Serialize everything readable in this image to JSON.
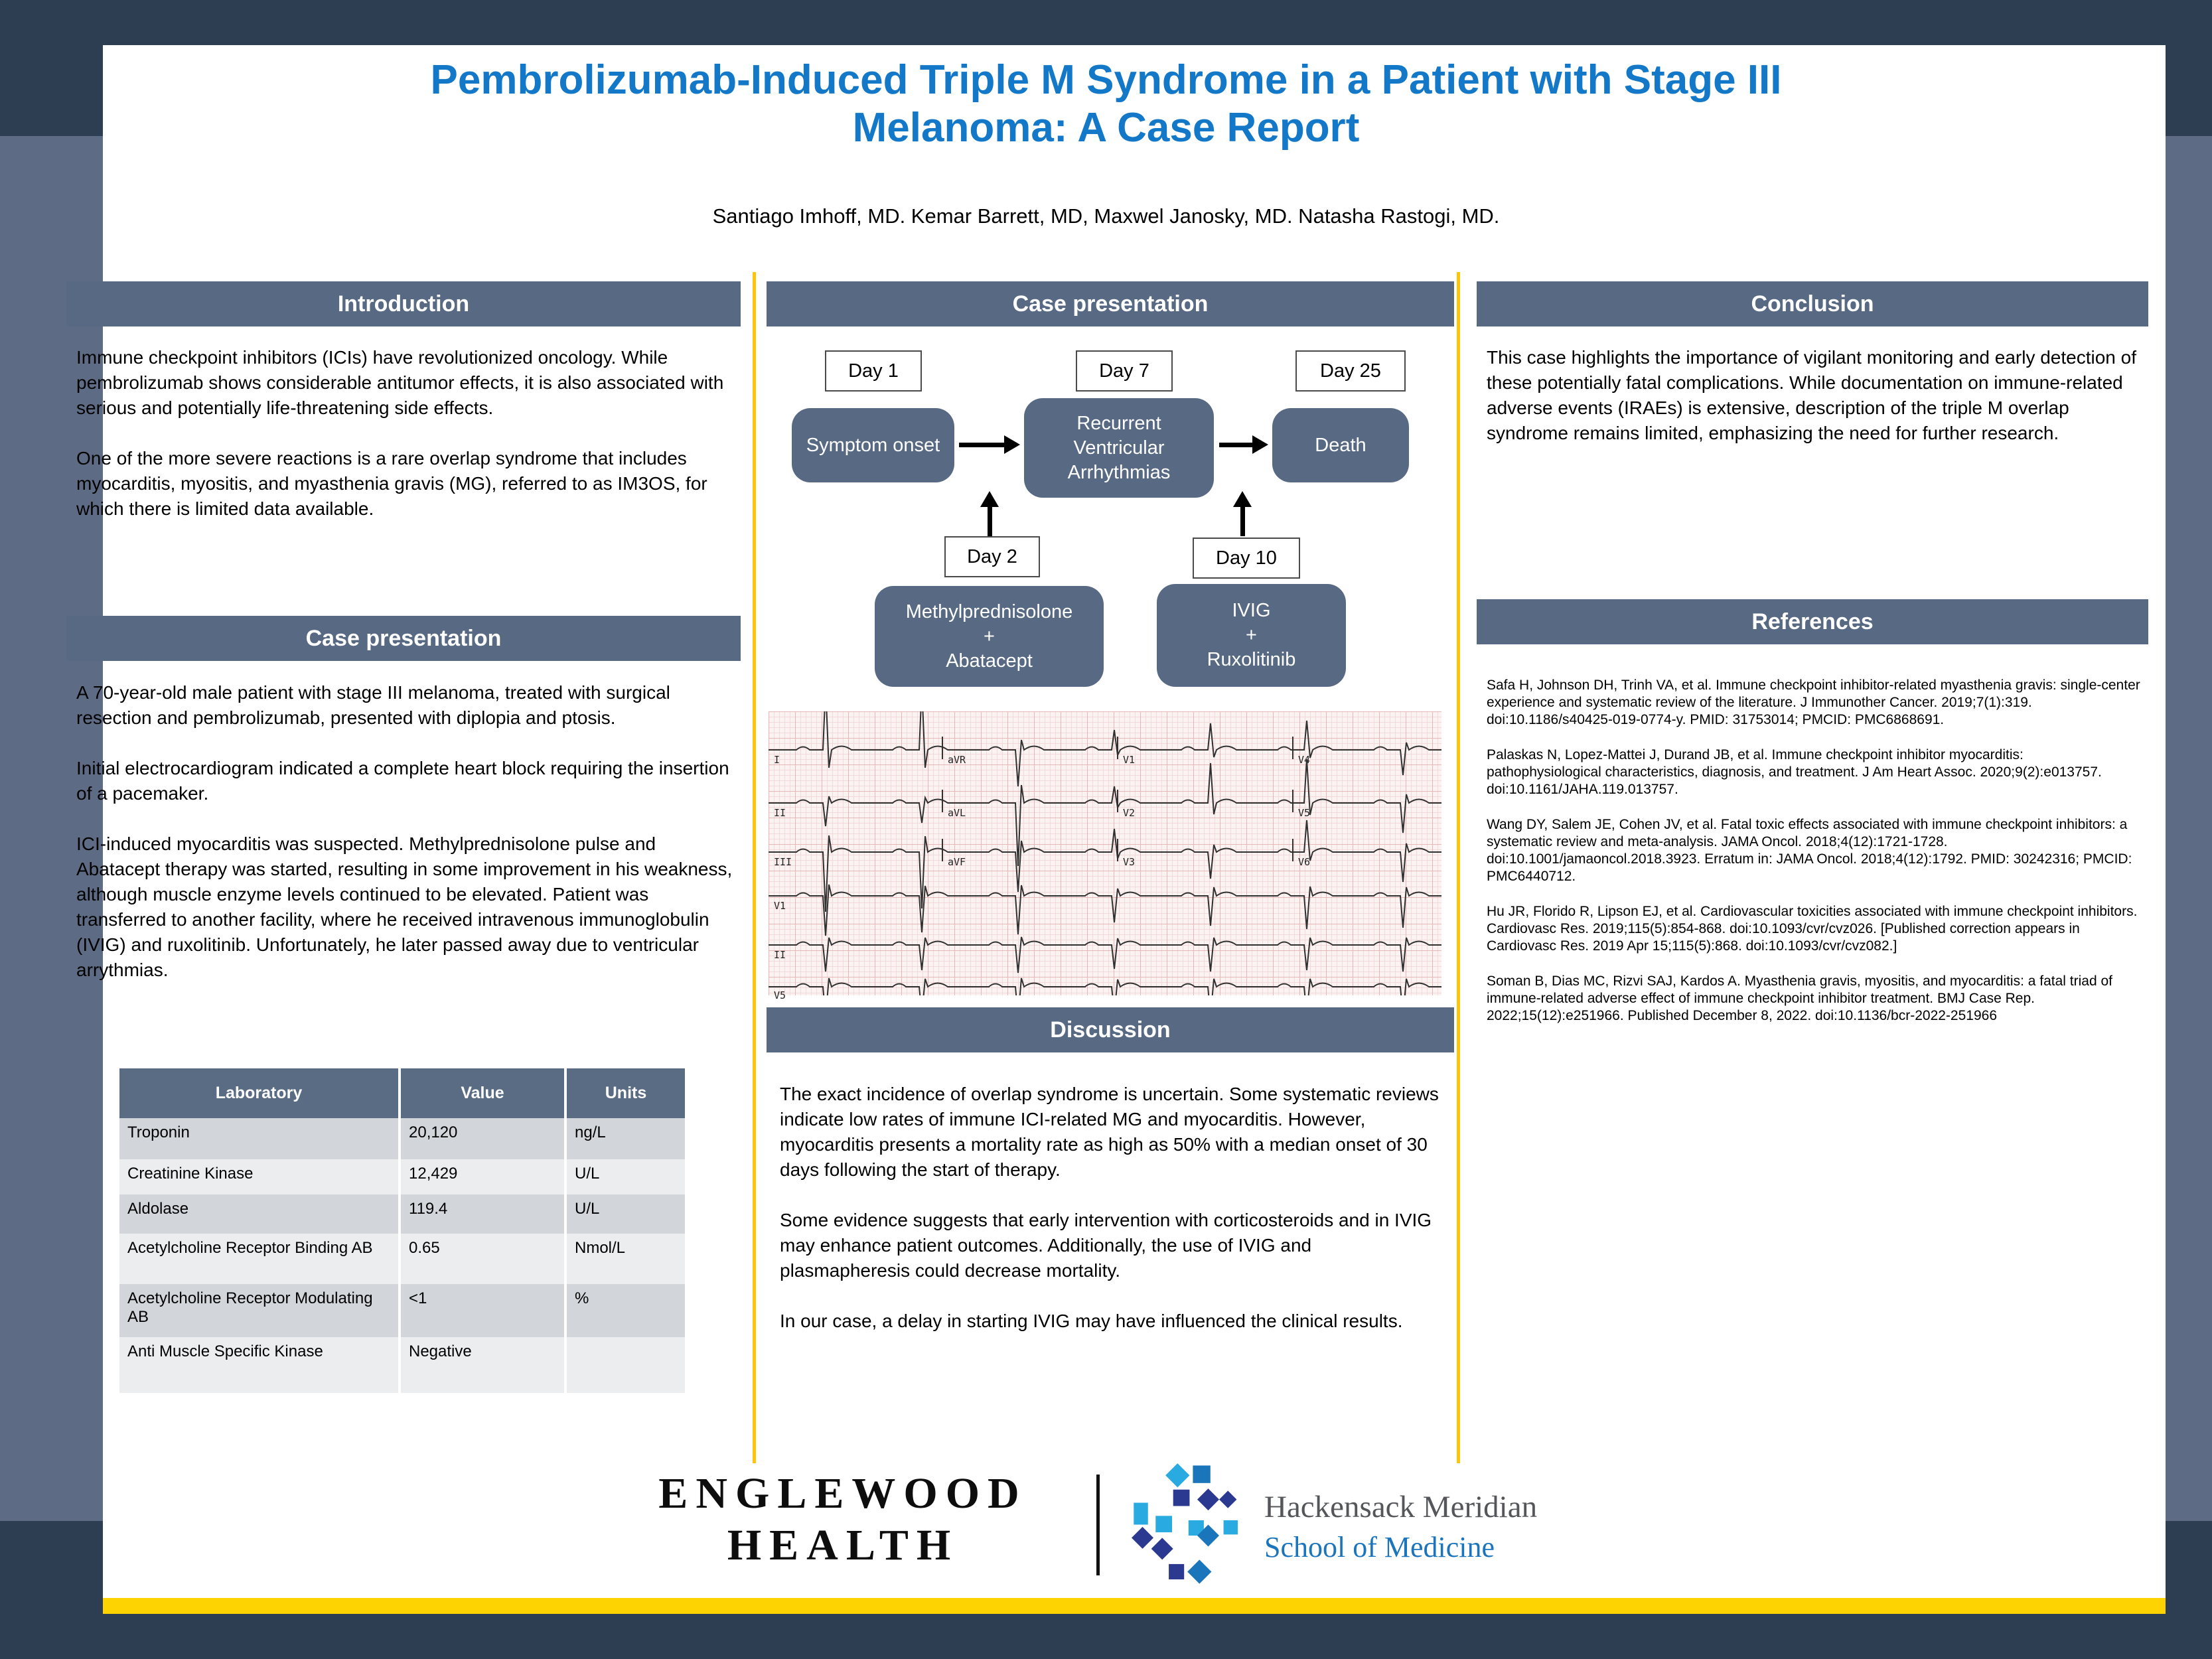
{
  "title": {
    "line1": "Pembrolizumab-Induced Triple M Syndrome in a Patient with Stage III",
    "line2": "Melanoma: A Case Report"
  },
  "authors": "Santiago Imhoff, MD. Kemar Barrett, MD, Maxwel Janosky, MD. Natasha Rastogi, MD.",
  "colors": {
    "title_blue": "#1478C8",
    "section_bar_slate": "#586A83",
    "frame_navy": "#2D3E53",
    "frame_slate": "#5D6C84",
    "accent_yellow": "#FDD402",
    "table_row_dark": "#D2D5DA",
    "table_row_light": "#ECEDEF",
    "school_of_medicine_blue": "#1B75BC"
  },
  "left": {
    "intro_header": "Introduction",
    "intro_paragraphs": [
      "Immune checkpoint inhibitors (ICIs) have revolutionized oncology. While pembrolizumab shows considerable antitumor effects, it is also associated with serious and potentially life-threatening side effects.",
      "One of the more severe reactions is a rare overlap syndrome that includes myocarditis, myositis, and myasthenia gravis (MG), referred to as IM3OS, for which there is limited data available."
    ],
    "case_header": "Case presentation",
    "case_paragraphs": [
      "A 70-year-old male patient with stage III melanoma, treated with surgical resection and pembrolizumab, presented with diplopia and ptosis.",
      "Initial electrocardiogram indicated a complete heart block requiring the insertion of a pacemaker.",
      "ICI-induced myocarditis was suspected. Methylprednisolone pulse and Abatacept therapy was started, resulting in some improvement in his weakness, although muscle enzyme levels continued to be elevated. Patient was transferred to another facility, where he received intravenous immunoglobulin (IVIG) and ruxolitinib. Unfortunately, he later passed away due to ventricular arrythmias."
    ],
    "table": {
      "headers": [
        "Laboratory",
        "Value",
        "Units"
      ],
      "rows": [
        {
          "lab": "Troponin",
          "value": "20,120",
          "units": "ng/L"
        },
        {
          "lab": "Creatinine Kinase",
          "value": "12,429",
          "units": "U/L"
        },
        {
          "lab": "Aldolase",
          "value": "119.4",
          "units": "U/L"
        },
        {
          "lab": "Acetylcholine Receptor Binding AB",
          "value": "0.65",
          "units": "Nmol/L"
        },
        {
          "lab": "Acetylcholine Receptor Modulating AB",
          "value": "<1",
          "units": "%"
        },
        {
          "lab": "Anti Muscle Specific Kinase",
          "value": "Negative",
          "units": ""
        }
      ]
    }
  },
  "middle": {
    "header": "Case presentation",
    "timeline": {
      "day1": "Day 1",
      "day7": "Day 7",
      "day25": "Day 25",
      "day2": "Day 2",
      "day10": "Day 10",
      "symptom": "Symptom onset",
      "rva": "Recurrent Ventricular Arrhythmias",
      "death": "Death",
      "methyl_lines": [
        "Methylprednisolone",
        "+",
        "Abatacept"
      ],
      "ivig_lines": [
        "IVIG",
        "+",
        "Ruxolitinib"
      ]
    },
    "ecg_leads": [
      [
        "I",
        "aVR",
        "V1",
        "V4"
      ],
      [
        "II",
        "aVL",
        "V2",
        "V5"
      ],
      [
        "III",
        "aVF",
        "V3",
        "V6"
      ],
      [
        "V1"
      ],
      [
        "II"
      ],
      [
        "V5"
      ]
    ],
    "discussion_header": "Discussion",
    "discussion_paragraphs": [
      "The exact incidence of overlap syndrome is uncertain. Some systematic reviews indicate low rates of immune ICI-related MG and myocarditis. However, myocarditis presents a mortality rate as high as 50% with a median onset of 30 days following the start of therapy.",
      "Some evidence suggests that early intervention with corticosteroids and in IVIG may enhance patient outcomes. Additionally, the use of IVIG and plasmapheresis could decrease mortality.",
      "In our case, a delay in starting IVIG may have influenced the clinical results."
    ]
  },
  "right": {
    "conclusion_header": "Conclusion",
    "conclusion_text": "This case highlights the importance of vigilant monitoring and early detection of these potentially fatal complications. While documentation on immune-related adverse events (IRAEs) is extensive, description of the triple M overlap syndrome remains limited, emphasizing the need for further research.",
    "references_header": "References",
    "references": [
      "Safa H, Johnson DH, Trinh VA, et al. Immune checkpoint inhibitor-related myasthenia gravis: single-center experience and systematic review of the literature. J Immunother Cancer. 2019;7(1):319. doi:10.1186/s40425-019-0774-y. PMID: 31753014; PMCID: PMC6868691.",
      "Palaskas N, Lopez-Mattei J, Durand JB, et al. Immune checkpoint inhibitor myocarditis: pathophysiological characteristics, diagnosis, and treatment. J Am Heart Assoc. 2020;9(2):e013757. doi:10.1161/JAHA.119.013757.",
      "Wang DY, Salem JE, Cohen JV, et al. Fatal toxic effects associated with immune checkpoint inhibitors: a systematic review and meta-analysis. JAMA Oncol. 2018;4(12):1721-1728. doi:10.1001/jamaoncol.2018.3923. Erratum in: JAMA Oncol. 2018;4(12):1792. PMID: 30242316; PMCID: PMC6440712.",
      "Hu JR, Florido R, Lipson EJ, et al. Cardiovascular toxicities associated with immune checkpoint inhibitors. Cardiovasc Res. 2019;115(5):854-868. doi:10.1093/cvr/cvz026. [Published correction appears in Cardiovasc Res. 2019 Apr 15;115(5):868. doi:10.1093/cvr/cvz082.]",
      "Soman B, Dias MC, Rizvi SAJ, Kardos A. Myasthenia gravis, myositis, and myocarditis: a fatal triad of immune-related adverse effect of immune checkpoint inhibitor treatment. BMJ Case Rep. 2022;15(12):e251966. Published December 8, 2022. doi:10.1136/bcr-2022-251966"
    ]
  },
  "footer": {
    "englewood": [
      "ENGLEWOOD",
      "HEALTH"
    ],
    "hm": [
      "Hackensack Meridian",
      "School of Medicine"
    ]
  }
}
